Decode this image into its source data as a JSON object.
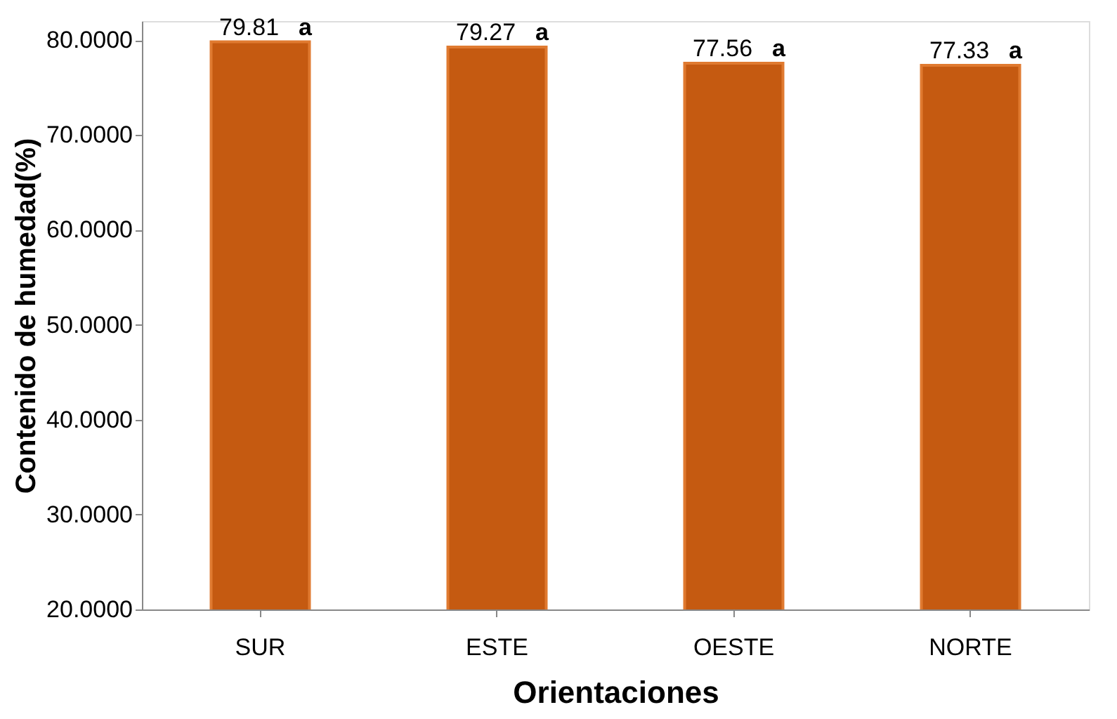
{
  "chart_data": {
    "type": "bar",
    "xlabel": "Orientaciones",
    "ylabel": "Contenido de humedad(%)",
    "categories": [
      "SUR",
      "ESTE",
      "OESTE",
      "NORTE"
    ],
    "values": [
      79.81,
      79.27,
      77.56,
      77.33
    ],
    "value_labels": [
      "79.81",
      "79.27",
      "77.56",
      "77.33"
    ],
    "color": "#c55a11",
    "ylim": [
      20,
      82
    ],
    "yticks": [
      {
        "value": 20,
        "label": "20.0000"
      },
      {
        "value": 30,
        "label": "30.0000"
      },
      {
        "value": 40,
        "label": "40.0000"
      },
      {
        "value": 50,
        "label": "50.0000"
      },
      {
        "value": 60,
        "label": "60.0000"
      },
      {
        "value": 70,
        "label": "70.0000"
      },
      {
        "value": 80,
        "label": "80.0000"
      }
    ],
    "annotations": [
      {
        "text": "a",
        "x": "SUR",
        "y": 79.81
      },
      {
        "text": "a",
        "x": "ESTE",
        "y": 79.27
      },
      {
        "text": "a",
        "x": "OESTE",
        "y": 77.56
      },
      {
        "text": "a",
        "x": "NORTE",
        "y": 77.33
      }
    ],
    "grid": false
  }
}
